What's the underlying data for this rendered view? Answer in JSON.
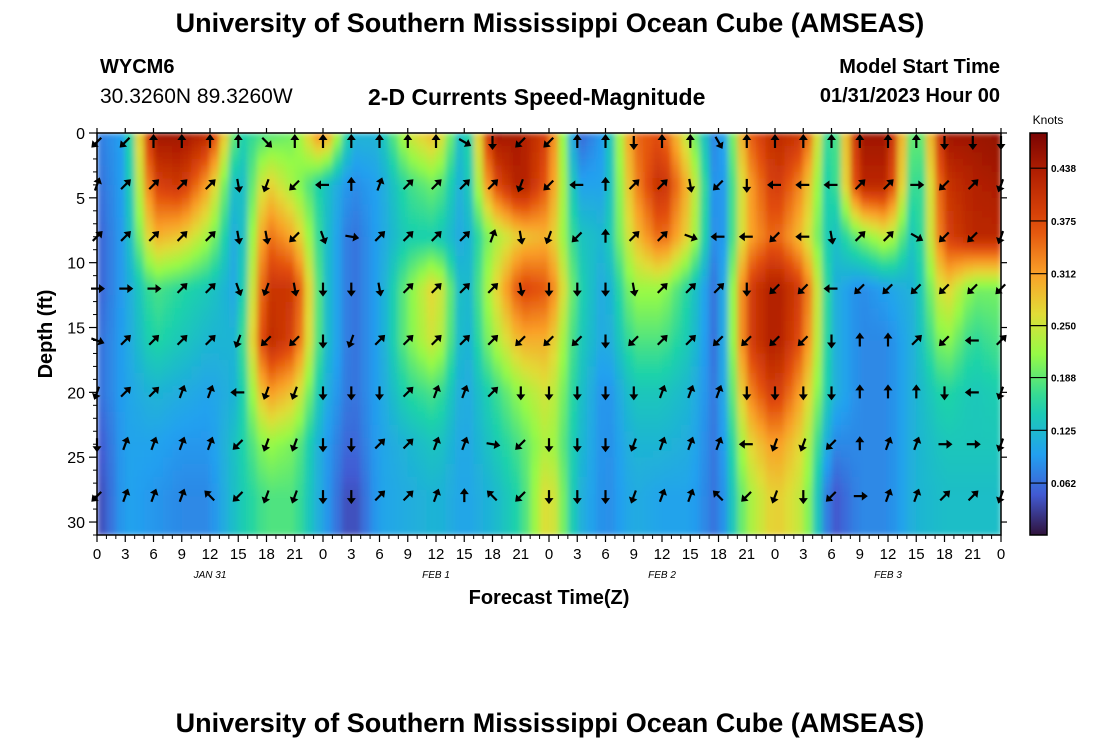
{
  "header": {
    "title": "University of Southern Mississippi Ocean Cube (AMSEAS)",
    "station": "WYCM6",
    "coordinates": "30.3260N  89.3260W",
    "subtitle": "2-D Currents Speed-Magnitude",
    "model_start_label": "Model Start Time",
    "model_start_value": "01/31/2023 Hour 00"
  },
  "footer": {
    "title": "University of Southern Mississippi Ocean Cube (AMSEAS)"
  },
  "chart_data": {
    "type": "heatmap",
    "title": "2-D Currents Speed-Magnitude",
    "xlabel": "Forecast Time(Z)",
    "ylabel": "Depth (ft)",
    "x_hours": [
      0,
      3,
      6,
      9,
      12,
      15,
      18,
      21,
      24,
      27,
      30,
      33,
      36,
      39,
      42,
      45,
      48,
      51,
      54,
      57,
      60,
      63,
      66,
      69,
      72,
      75,
      78,
      81,
      84,
      87,
      90,
      93,
      96
    ],
    "x_tick_labels": [
      "0",
      "3",
      "6",
      "9",
      "12",
      "15",
      "18",
      "21",
      "0",
      "3",
      "6",
      "9",
      "12",
      "15",
      "18",
      "21",
      "0",
      "3",
      "6",
      "9",
      "12",
      "15",
      "18",
      "21",
      "0",
      "3",
      "6",
      "9",
      "12",
      "15",
      "18",
      "21",
      "0"
    ],
    "date_labels": [
      {
        "hour": 12,
        "text": "JAN 31"
      },
      {
        "hour": 36,
        "text": "FEB 1"
      },
      {
        "hour": 60,
        "text": "FEB 2"
      },
      {
        "hour": 84,
        "text": "FEB 3"
      }
    ],
    "depths_ft": [
      0,
      4,
      8,
      12,
      16,
      20,
      24,
      28
    ],
    "y_ticks": [
      0,
      5,
      10,
      15,
      20,
      25,
      30
    ],
    "xlim": [
      0,
      96
    ],
    "ylim": [
      31,
      0
    ],
    "colorbar": {
      "label": "Knots",
      "ticks": [
        0.062,
        0.125,
        0.188,
        0.25,
        0.312,
        0.375,
        0.438
      ],
      "tick_labels": [
        "0.062",
        "0.125",
        "0.188",
        "0.250",
        "0.312",
        "0.375",
        "0.438"
      ],
      "range": [
        0,
        0.48
      ]
    },
    "speed_knots": [
      [
        0.07,
        0.1,
        0.45,
        0.45,
        0.42,
        0.15,
        0.18,
        0.2,
        0.35,
        0.12,
        0.12,
        0.25,
        0.3,
        0.1,
        0.45,
        0.44,
        0.38,
        0.05,
        0.1,
        0.35,
        0.37,
        0.22,
        0.05,
        0.35,
        0.42,
        0.4,
        0.12,
        0.45,
        0.45,
        0.14,
        0.45,
        0.45,
        0.46
      ],
      [
        0.06,
        0.1,
        0.38,
        0.4,
        0.3,
        0.1,
        0.28,
        0.22,
        0.14,
        0.08,
        0.1,
        0.17,
        0.2,
        0.1,
        0.36,
        0.44,
        0.35,
        0.1,
        0.1,
        0.32,
        0.42,
        0.28,
        0.05,
        0.3,
        0.4,
        0.32,
        0.12,
        0.42,
        0.42,
        0.12,
        0.4,
        0.43,
        0.44
      ],
      [
        0.05,
        0.1,
        0.3,
        0.28,
        0.22,
        0.09,
        0.35,
        0.3,
        0.14,
        0.06,
        0.1,
        0.15,
        0.15,
        0.1,
        0.22,
        0.28,
        0.3,
        0.14,
        0.12,
        0.28,
        0.36,
        0.26,
        0.05,
        0.3,
        0.36,
        0.28,
        0.12,
        0.2,
        0.25,
        0.12,
        0.38,
        0.42,
        0.42
      ],
      [
        0.05,
        0.1,
        0.18,
        0.16,
        0.14,
        0.1,
        0.4,
        0.4,
        0.14,
        0.06,
        0.1,
        0.2,
        0.28,
        0.1,
        0.25,
        0.38,
        0.36,
        0.16,
        0.1,
        0.22,
        0.22,
        0.15,
        0.05,
        0.38,
        0.44,
        0.38,
        0.12,
        0.08,
        0.1,
        0.12,
        0.28,
        0.2,
        0.2
      ],
      [
        0.06,
        0.1,
        0.16,
        0.14,
        0.12,
        0.12,
        0.42,
        0.38,
        0.14,
        0.06,
        0.1,
        0.2,
        0.26,
        0.1,
        0.22,
        0.3,
        0.3,
        0.15,
        0.1,
        0.18,
        0.18,
        0.14,
        0.05,
        0.38,
        0.44,
        0.36,
        0.12,
        0.08,
        0.08,
        0.12,
        0.22,
        0.16,
        0.18
      ],
      [
        0.06,
        0.1,
        0.12,
        0.11,
        0.1,
        0.12,
        0.32,
        0.28,
        0.12,
        0.06,
        0.1,
        0.16,
        0.18,
        0.1,
        0.16,
        0.22,
        0.26,
        0.14,
        0.08,
        0.14,
        0.14,
        0.12,
        0.06,
        0.32,
        0.4,
        0.3,
        0.12,
        0.08,
        0.08,
        0.12,
        0.16,
        0.14,
        0.15
      ],
      [
        0.04,
        0.1,
        0.1,
        0.09,
        0.09,
        0.14,
        0.22,
        0.2,
        0.1,
        0.05,
        0.1,
        0.12,
        0.14,
        0.1,
        0.14,
        0.18,
        0.24,
        0.13,
        0.08,
        0.12,
        0.12,
        0.11,
        0.06,
        0.26,
        0.32,
        0.26,
        0.08,
        0.08,
        0.08,
        0.12,
        0.14,
        0.14,
        0.14
      ],
      [
        0.03,
        0.1,
        0.09,
        0.08,
        0.08,
        0.14,
        0.18,
        0.18,
        0.1,
        0.03,
        0.1,
        0.11,
        0.12,
        0.1,
        0.12,
        0.16,
        0.28,
        0.12,
        0.08,
        0.11,
        0.1,
        0.1,
        0.06,
        0.22,
        0.28,
        0.24,
        0.04,
        0.08,
        0.08,
        0.12,
        0.13,
        0.13,
        0.13
      ]
    ],
    "arrow_direction_deg": [
      [
        225,
        225,
        0,
        0,
        0,
        0,
        135,
        0,
        0,
        0,
        0,
        0,
        0,
        120,
        180,
        225,
        225,
        0,
        0,
        180,
        0,
        0,
        150,
        0,
        0,
        0,
        0,
        0,
        0,
        0,
        180,
        180,
        180
      ],
      [
        20,
        45,
        45,
        45,
        45,
        170,
        200,
        225,
        270,
        0,
        20,
        45,
        45,
        45,
        45,
        200,
        225,
        270,
        0,
        45,
        45,
        170,
        225,
        180,
        270,
        270,
        270,
        45,
        45,
        90,
        225,
        45,
        200
      ],
      [
        45,
        45,
        45,
        45,
        45,
        170,
        170,
        225,
        160,
        100,
        45,
        45,
        45,
        45,
        20,
        170,
        200,
        225,
        0,
        45,
        45,
        110,
        270,
        270,
        225,
        270,
        170,
        45,
        45,
        120,
        225,
        225,
        200
      ],
      [
        90,
        90,
        90,
        45,
        45,
        160,
        200,
        170,
        180,
        180,
        170,
        45,
        45,
        45,
        45,
        170,
        180,
        180,
        180,
        170,
        45,
        45,
        45,
        180,
        225,
        225,
        270,
        225,
        225,
        225,
        225,
        225,
        225
      ],
      [
        110,
        45,
        45,
        45,
        45,
        200,
        225,
        225,
        180,
        200,
        45,
        45,
        45,
        45,
        45,
        225,
        225,
        225,
        180,
        225,
        45,
        45,
        225,
        225,
        225,
        225,
        180,
        0,
        0,
        45,
        225,
        270,
        45
      ],
      [
        200,
        45,
        45,
        20,
        20,
        270,
        200,
        200,
        180,
        180,
        180,
        45,
        20,
        20,
        45,
        180,
        180,
        180,
        180,
        180,
        20,
        20,
        20,
        180,
        180,
        180,
        180,
        0,
        0,
        0,
        180,
        270,
        200
      ],
      [
        180,
        20,
        20,
        20,
        20,
        225,
        200,
        200,
        180,
        180,
        45,
        45,
        20,
        20,
        100,
        225,
        180,
        180,
        180,
        200,
        20,
        20,
        20,
        270,
        200,
        200,
        225,
        0,
        20,
        20,
        90,
        90,
        200
      ],
      [
        225,
        20,
        20,
        20,
        315,
        225,
        200,
        200,
        180,
        180,
        45,
        45,
        20,
        0,
        315,
        225,
        180,
        180,
        180,
        200,
        20,
        20,
        315,
        225,
        200,
        180,
        225,
        90,
        20,
        20,
        45,
        45,
        200
      ]
    ]
  }
}
